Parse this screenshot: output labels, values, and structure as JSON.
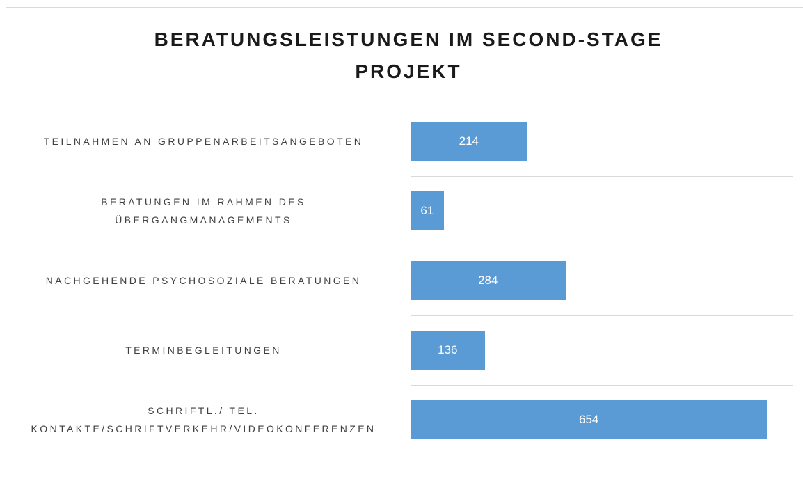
{
  "chart_data": {
    "type": "bar",
    "orientation": "horizontal",
    "title": "BERATUNGSLEISTUNGEN IM SECOND-STAGE PROJEKT",
    "categories": [
      "TEILNAHMEN AN GRUPPENARBEITSANGEBOTEN",
      "BERATUNGEN IM RAHMEN DES ÜBERGANGMANAGEMENTS",
      "NACHGEHENDE PSYCHOSOZIALE BERATUNGEN",
      "TERMINBEGLEITUNGEN",
      "SCHRIFTL./ TEL. KONTAKTE/SCHRIFTVERKEHR/VIDEOKONFERENZEN"
    ],
    "values": [
      214,
      61,
      284,
      136,
      654
    ],
    "color": "#5b9bd5",
    "xlim": [
      0,
      702
    ],
    "grid": true
  }
}
